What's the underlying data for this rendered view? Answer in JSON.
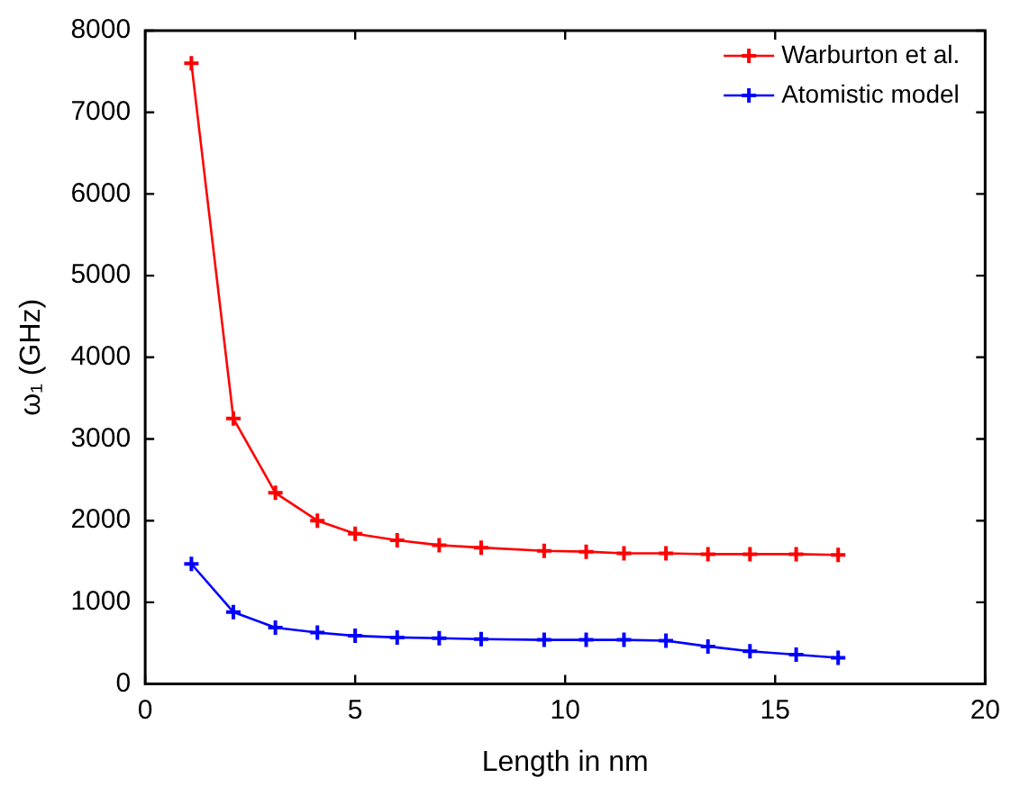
{
  "chart_data": {
    "type": "line",
    "xlabel": "Length in nm",
    "ylabel": "ω₁ (GHz)",
    "x": [
      1.1,
      2.1,
      3.1,
      4.1,
      5.0,
      6.0,
      7.0,
      8.0,
      9.5,
      10.5,
      11.4,
      12.4,
      13.4,
      14.4,
      15.5,
      16.5
    ],
    "series": [
      {
        "name": "Warburton et al.",
        "color": "#ff0000",
        "values": [
          7600,
          3250,
          2340,
          2000,
          1840,
          1760,
          1700,
          1670,
          1630,
          1620,
          1600,
          1600,
          1590,
          1590,
          1590,
          1580
        ]
      },
      {
        "name": "Atomistic model",
        "color": "#0000ff",
        "values": [
          1470,
          880,
          690,
          630,
          590,
          570,
          560,
          550,
          540,
          540,
          540,
          530,
          460,
          400,
          360,
          320
        ]
      }
    ],
    "xlim": [
      0,
      20
    ],
    "xticks": [
      0,
      5,
      10,
      15,
      20
    ],
    "ylim": [
      0,
      8000
    ],
    "yticks": [
      0,
      1000,
      2000,
      3000,
      4000,
      5000,
      6000,
      7000,
      8000
    ],
    "grid": false,
    "legend": "top right",
    "marker": "cross",
    "line_style": "solid"
  }
}
